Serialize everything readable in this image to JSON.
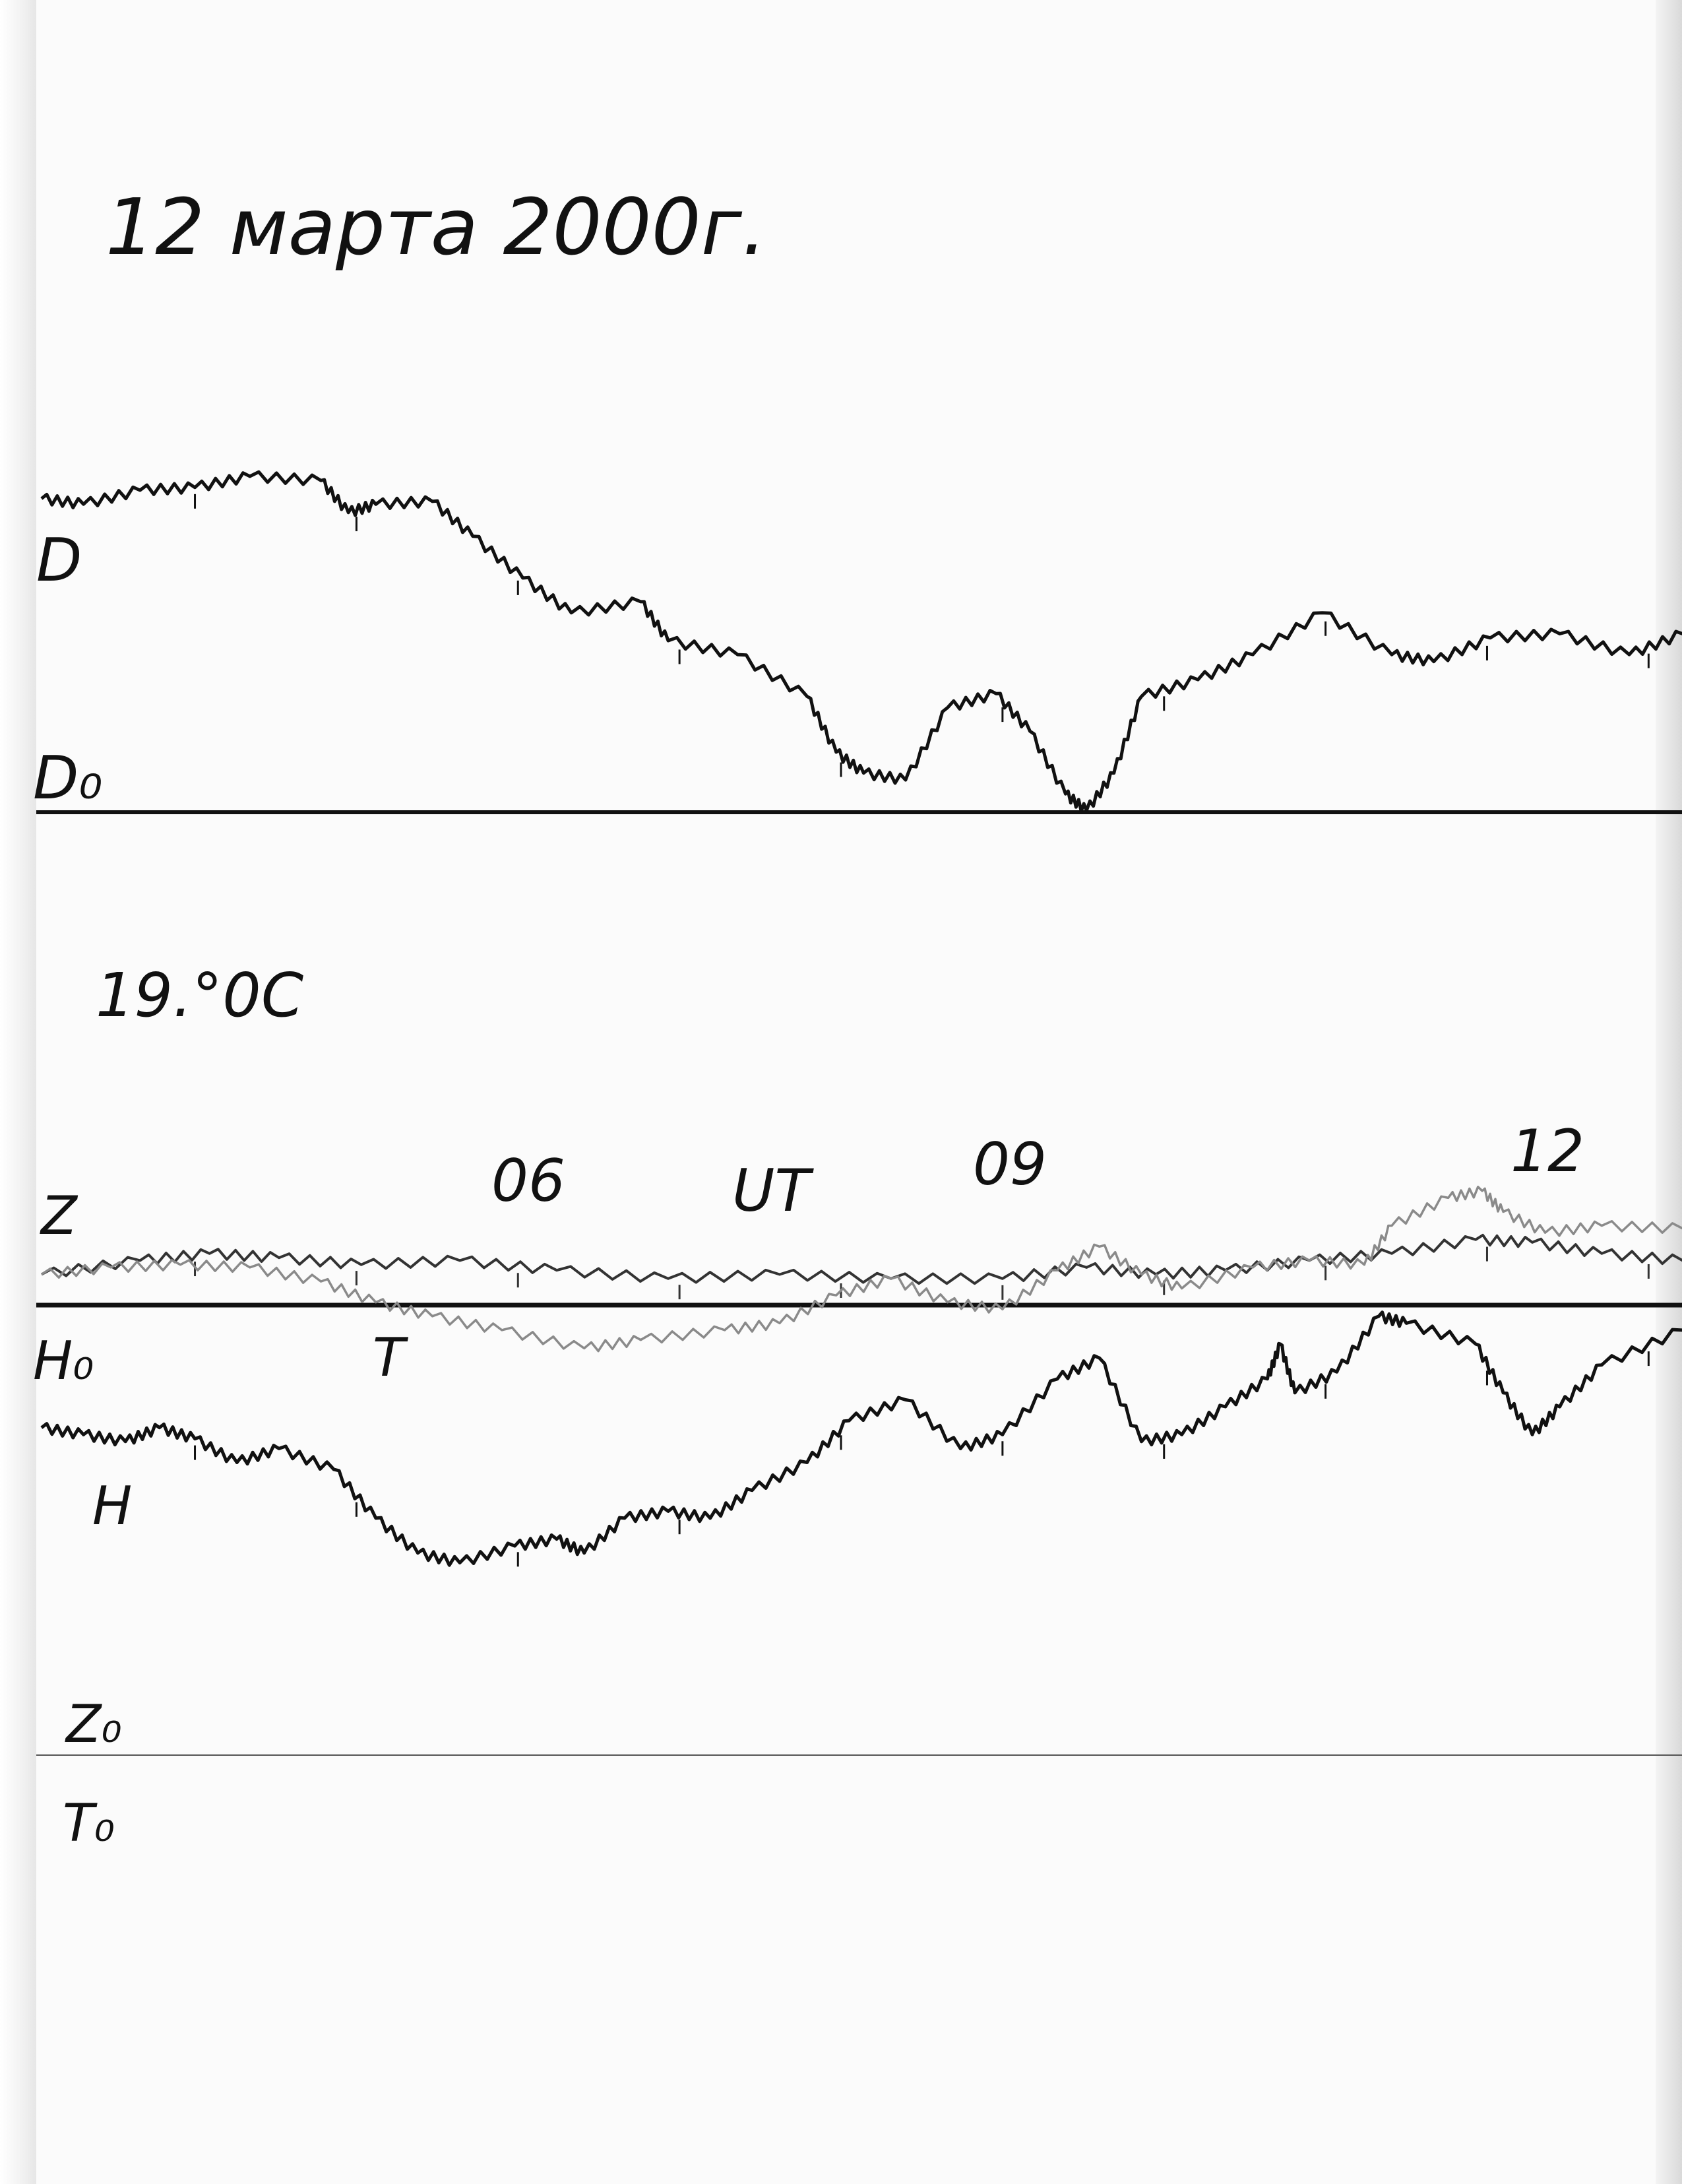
{
  "title": "12 марта 2000г.",
  "temperature": "19.°0C",
  "time_labels": {
    "t06": "06",
    "unit": "UT",
    "t09": "09",
    "t12": "12"
  },
  "trace_labels": {
    "D": "D",
    "D0": "D₀",
    "Z": "Z",
    "H0": "H₀",
    "T": "T",
    "H": "H",
    "Z0": "Z₀",
    "T0": "T₀"
  },
  "colors": {
    "ink": "#111111",
    "t_trace": "#8a8a8a",
    "paper": "#fbfbfb"
  },
  "chart_data": {
    "type": "line",
    "title": "12 марта 2000г.",
    "xlabel": "UT",
    "x_tick_labels": [
      "06",
      "09",
      "12"
    ],
    "xlim": [
      3.05,
      13.21
    ],
    "ylabel": "",
    "grid": false,
    "series": [
      {
        "name": "D",
        "baseline": "D₀",
        "color": "#111111",
        "points": [
          [
            3.05,
            22.5
          ],
          [
            3.31,
            22.1
          ],
          [
            3.66,
            23.1
          ],
          [
            4.0,
            23.3
          ],
          [
            4.34,
            24.1
          ],
          [
            4.78,
            23.8
          ],
          [
            4.95,
            21.5
          ],
          [
            5.12,
            22.1
          ],
          [
            5.47,
            22.3
          ],
          [
            5.72,
            19.8
          ],
          [
            6.03,
            16.8
          ],
          [
            6.33,
            14.3
          ],
          [
            6.76,
            15.1
          ],
          [
            6.93,
            12.3
          ],
          [
            7.36,
            11.3
          ],
          [
            7.79,
            8.3
          ],
          [
            7.97,
            4.3
          ],
          [
            8.14,
            2.8
          ],
          [
            8.4,
            2.3
          ],
          [
            8.66,
            7.5
          ],
          [
            8.96,
            8.5
          ],
          [
            9.17,
            5.8
          ],
          [
            9.39,
            1.3
          ],
          [
            9.52,
            0.1
          ],
          [
            9.69,
            2.8
          ],
          [
            9.86,
            8.3
          ],
          [
            10.21,
            9.5
          ],
          [
            10.55,
            11.3
          ],
          [
            10.98,
            14.3
          ],
          [
            11.41,
            11.3
          ],
          [
            11.67,
            10.8
          ],
          [
            12.02,
            12.5
          ],
          [
            12.45,
            12.8
          ],
          [
            12.88,
            11.3
          ],
          [
            13.21,
            12.8
          ]
        ]
      },
      {
        "name": "Z",
        "baseline": "Z₀",
        "color": "#333333",
        "points": [
          [
            3.05,
            34.5
          ],
          [
            3.66,
            35.5
          ],
          [
            4.09,
            36.0
          ],
          [
            4.52,
            35.7
          ],
          [
            5.03,
            35.2
          ],
          [
            5.64,
            35.5
          ],
          [
            6.24,
            34.8
          ],
          [
            6.93,
            34.2
          ],
          [
            7.62,
            34.5
          ],
          [
            8.31,
            34.2
          ],
          [
            9.0,
            34.2
          ],
          [
            9.52,
            35.0
          ],
          [
            9.95,
            34.5
          ],
          [
            10.38,
            34.8
          ],
          [
            10.9,
            35.5
          ],
          [
            11.41,
            36.0
          ],
          [
            11.93,
            37.0
          ],
          [
            12.28,
            36.8
          ],
          [
            12.71,
            36.0
          ],
          [
            13.21,
            35.5
          ]
        ]
      },
      {
        "name": "T",
        "baseline": "T₀",
        "color": "#8a8a8a",
        "points": [
          [
            3.05,
            34.5
          ],
          [
            3.48,
            35.0
          ],
          [
            3.91,
            35.2
          ],
          [
            4.34,
            35.0
          ],
          [
            4.78,
            34.0
          ],
          [
            5.12,
            32.5
          ],
          [
            5.47,
            31.5
          ],
          [
            5.9,
            30.5
          ],
          [
            6.41,
            29.2
          ],
          [
            6.76,
            29.8
          ],
          [
            7.28,
            30.5
          ],
          [
            7.62,
            31.0
          ],
          [
            7.97,
            33.0
          ],
          [
            8.31,
            34.2
          ],
          [
            8.66,
            32.5
          ],
          [
            9.0,
            32.0
          ],
          [
            9.34,
            34.8
          ],
          [
            9.6,
            36.5
          ],
          [
            9.86,
            34.5
          ],
          [
            10.11,
            33.5
          ],
          [
            10.55,
            35.0
          ],
          [
            10.9,
            35.5
          ],
          [
            11.24,
            35.2
          ],
          [
            11.41,
            38.0
          ],
          [
            11.76,
            40.0
          ],
          [
            11.97,
            40.5
          ],
          [
            12.1,
            39.0
          ],
          [
            12.36,
            37.5
          ],
          [
            12.71,
            38.0
          ],
          [
            13.21,
            37.8
          ]
        ]
      },
      {
        "name": "H",
        "baseline": "H₀",
        "color": "#111111",
        "points": [
          [
            3.05,
            -8.8
          ],
          [
            3.31,
            -9.3
          ],
          [
            3.57,
            -9.8
          ],
          [
            3.78,
            -8.8
          ],
          [
            4.0,
            -9.6
          ],
          [
            4.26,
            -11.3
          ],
          [
            4.52,
            -10.3
          ],
          [
            4.86,
            -11.8
          ],
          [
            5.12,
            -15.3
          ],
          [
            5.38,
            -17.8
          ],
          [
            5.64,
            -18.5
          ],
          [
            5.98,
            -17.3
          ],
          [
            6.24,
            -16.8
          ],
          [
            6.41,
            -17.8
          ],
          [
            6.66,
            -15.3
          ],
          [
            6.93,
            -14.8
          ],
          [
            7.19,
            -15.3
          ],
          [
            7.45,
            -13.3
          ],
          [
            7.79,
            -11.3
          ],
          [
            8.05,
            -8.3
          ],
          [
            8.4,
            -6.8
          ],
          [
            8.74,
            -10.3
          ],
          [
            9.0,
            -9.3
          ],
          [
            9.34,
            -5.3
          ],
          [
            9.6,
            -3.8
          ],
          [
            9.86,
            -9.8
          ],
          [
            10.11,
            -9.3
          ],
          [
            10.38,
            -7.3
          ],
          [
            10.64,
            -5.3
          ],
          [
            10.72,
            -2.8
          ],
          [
            10.81,
            -6.3
          ],
          [
            11.07,
            -4.8
          ],
          [
            11.33,
            -0.8
          ],
          [
            11.5,
            -1.3
          ],
          [
            11.93,
            -2.8
          ],
          [
            12.1,
            -6.3
          ],
          [
            12.28,
            -9.3
          ],
          [
            12.45,
            -7.3
          ],
          [
            12.71,
            -4.3
          ],
          [
            13.21,
            -1.8
          ]
        ]
      }
    ]
  }
}
